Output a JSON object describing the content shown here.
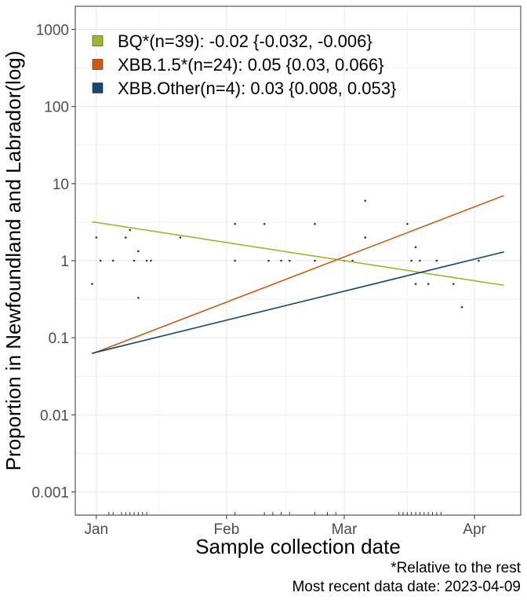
{
  "chart_data": {
    "type": "scatter",
    "ylabel": "Proportion in Newfoundland and Labrador(log)",
    "xlabel": "Sample collection date",
    "y_scale": "log",
    "ylim": [
      0.0005,
      2000
    ],
    "xlim": [
      "2022-12-27",
      "2023-04-12"
    ],
    "x_ticks": [
      {
        "date": "2023-01-01",
        "label": "Jan"
      },
      {
        "date": "2023-02-01",
        "label": "Feb"
      },
      {
        "date": "2023-03-01",
        "label": "Mar"
      },
      {
        "date": "2023-04-01",
        "label": "Apr"
      }
    ],
    "y_ticks": [
      {
        "value": 0.001,
        "label": "0.001"
      },
      {
        "value": 0.01,
        "label": "0.01"
      },
      {
        "value": 0.1,
        "label": "0.1"
      },
      {
        "value": 1,
        "label": "1"
      },
      {
        "value": 10,
        "label": "10"
      },
      {
        "value": 100,
        "label": "100"
      },
      {
        "value": 1000,
        "label": "1000"
      }
    ],
    "grid": true,
    "legend_position": "top-left",
    "series": [
      {
        "name": "BQ*(n=39): -0.02 {-0.032, -0.006}",
        "color": "#9fb62c",
        "fit": [
          {
            "x": "2022-12-31",
            "y": 3.2
          },
          {
            "x": "2023-04-08",
            "y": 0.48
          }
        ]
      },
      {
        "name": "XBB.1.5*(n=24): 0.05 {0.03, 0.066}",
        "color": "#cf5a12",
        "fit": [
          {
            "x": "2022-12-31",
            "y": 0.062
          },
          {
            "x": "2023-04-08",
            "y": 7.0
          }
        ]
      },
      {
        "name": "XBB.Other(n=4): 0.03 {0.008, 0.053}",
        "color": "#11496f",
        "fit": [
          {
            "x": "2022-12-31",
            "y": 0.063
          },
          {
            "x": "2023-04-08",
            "y": 1.3
          }
        ]
      }
    ],
    "points": [
      {
        "x": "2022-12-31",
        "y": 0.5
      },
      {
        "x": "2023-01-01",
        "y": 2
      },
      {
        "x": "2023-01-02",
        "y": 1
      },
      {
        "x": "2023-01-05",
        "y": 1
      },
      {
        "x": "2023-01-08",
        "y": 2
      },
      {
        "x": "2023-01-09",
        "y": 2.5
      },
      {
        "x": "2023-01-10",
        "y": 1
      },
      {
        "x": "2023-01-11",
        "y": 1.33
      },
      {
        "x": "2023-01-11",
        "y": 0.33
      },
      {
        "x": "2023-01-13",
        "y": 1
      },
      {
        "x": "2023-01-14",
        "y": 1
      },
      {
        "x": "2023-01-21",
        "y": 2
      },
      {
        "x": "2023-02-03",
        "y": 3
      },
      {
        "x": "2023-02-03",
        "y": 1
      },
      {
        "x": "2023-02-10",
        "y": 3
      },
      {
        "x": "2023-02-11",
        "y": 1
      },
      {
        "x": "2023-02-14",
        "y": 1
      },
      {
        "x": "2023-02-16",
        "y": 1
      },
      {
        "x": "2023-02-22",
        "y": 3
      },
      {
        "x": "2023-02-22",
        "y": 1
      },
      {
        "x": "2023-03-01",
        "y": 1
      },
      {
        "x": "2023-03-03",
        "y": 1
      },
      {
        "x": "2023-03-06",
        "y": 6
      },
      {
        "x": "2023-03-06",
        "y": 2
      },
      {
        "x": "2023-03-16",
        "y": 3
      },
      {
        "x": "2023-03-17",
        "y": 1
      },
      {
        "x": "2023-03-18",
        "y": 1.5
      },
      {
        "x": "2023-03-18",
        "y": 0.5
      },
      {
        "x": "2023-03-19",
        "y": 1
      },
      {
        "x": "2023-03-21",
        "y": 0.5
      },
      {
        "x": "2023-03-23",
        "y": 1
      },
      {
        "x": "2023-03-27",
        "y": 0.5
      },
      {
        "x": "2023-03-29",
        "y": 0.25
      },
      {
        "x": "2023-04-02",
        "y": 1
      }
    ],
    "rug_dates": [
      "2023-01-04",
      "2023-01-05",
      "2023-01-07",
      "2023-01-08",
      "2023-01-09",
      "2023-01-10",
      "2023-01-11",
      "2023-01-12",
      "2023-01-13",
      "2023-02-03",
      "2023-02-10",
      "2023-02-12",
      "2023-02-14",
      "2023-02-16",
      "2023-02-22",
      "2023-02-25",
      "2023-02-27",
      "2023-03-14",
      "2023-03-15",
      "2023-03-16",
      "2023-03-17",
      "2023-03-18",
      "2023-03-19",
      "2023-03-20",
      "2023-03-21",
      "2023-03-22",
      "2023-03-23",
      "2023-03-24"
    ]
  },
  "footnote": {
    "relative": "*Relative to the rest",
    "recent_date": "Most recent data date: 2023-04-09"
  }
}
